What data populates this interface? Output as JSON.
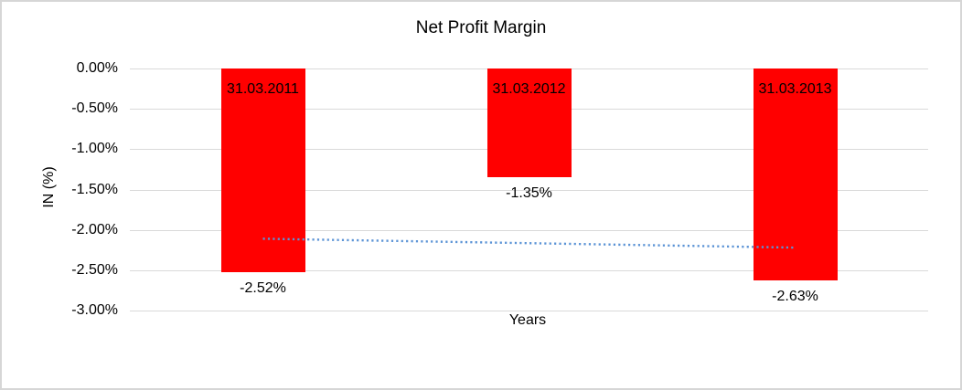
{
  "chart_data": {
    "type": "bar",
    "title": "Net Profit Margin",
    "xlabel": "Years",
    "ylabel": "IN (%)",
    "categories": [
      "31.03.2011",
      "31.03.2012",
      "31.03.2013"
    ],
    "values": [
      -2.52,
      -1.35,
      -2.63
    ],
    "value_labels": [
      "-2.52%",
      "-1.35%",
      "-2.63%"
    ],
    "y_tick_labels": [
      "0.00%",
      "-0.50%",
      "-1.00%",
      "-1.50%",
      "-2.00%",
      "-2.50%",
      "-3.00%"
    ],
    "y_tick_values": [
      0,
      -0.5,
      -1.0,
      -1.5,
      -2.0,
      -2.5,
      -3.0
    ],
    "ylim": [
      -3.0,
      0.0
    ],
    "grid": true,
    "legend": "none",
    "bar_color": "#ff0000",
    "grid_color": "#d9d9d9",
    "trendline": {
      "style": "dotted",
      "color": "#5c94d6",
      "start_value": -2.11,
      "end_value": -2.22
    }
  }
}
